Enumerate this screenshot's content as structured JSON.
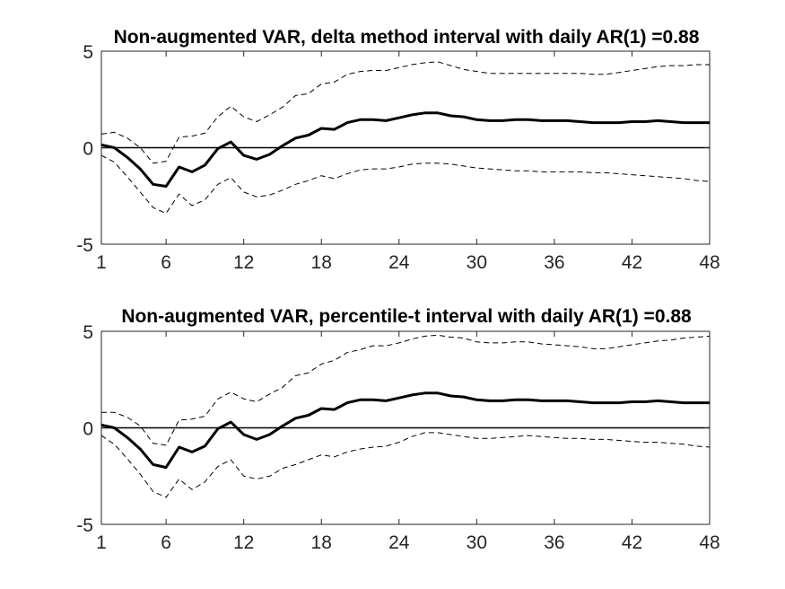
{
  "chart_data": [
    {
      "type": "line",
      "title": "Non-augmented VAR, delta method interval with daily AR(1) =0.88",
      "xlabel": "",
      "ylabel": "",
      "xlim": [
        1,
        48
      ],
      "ylim": [
        -5,
        5
      ],
      "xticks": [
        1,
        6,
        12,
        18,
        24,
        30,
        36,
        42,
        48
      ],
      "yticks": [
        -5,
        0,
        5
      ],
      "xtick_labels": [
        "1",
        "6",
        "12",
        "18",
        "24",
        "30",
        "36",
        "42",
        "48"
      ],
      "ytick_labels": [
        "-5",
        "0",
        "5"
      ],
      "grid": false,
      "reference_line": 0,
      "colors": {
        "line": "#000000"
      },
      "x": [
        1,
        2,
        3,
        4,
        5,
        6,
        7,
        8,
        9,
        10,
        11,
        12,
        13,
        14,
        15,
        16,
        17,
        18,
        19,
        20,
        21,
        22,
        23,
        24,
        25,
        26,
        27,
        28,
        29,
        30,
        31,
        32,
        33,
        34,
        35,
        36,
        37,
        38,
        39,
        40,
        41,
        42,
        43,
        44,
        45,
        46,
        47,
        48
      ],
      "series": [
        {
          "role": "estimate",
          "style": "solid-thick",
          "values": [
            0.15,
            0.0,
            -0.5,
            -1.1,
            -1.9,
            -2.0,
            -1.0,
            -1.25,
            -0.9,
            -0.05,
            0.3,
            -0.4,
            -0.6,
            -0.35,
            0.1,
            0.5,
            0.65,
            1.0,
            0.95,
            1.3,
            1.45,
            1.45,
            1.4,
            1.55,
            1.7,
            1.8,
            1.8,
            1.65,
            1.6,
            1.45,
            1.4,
            1.4,
            1.45,
            1.45,
            1.4,
            1.4,
            1.4,
            1.35,
            1.3,
            1.3,
            1.3,
            1.35,
            1.35,
            1.4,
            1.35,
            1.3,
            1.3,
            1.3
          ]
        },
        {
          "role": "upper",
          "style": "dashed",
          "values": [
            0.7,
            0.8,
            0.5,
            0.0,
            -0.8,
            -0.7,
            0.55,
            0.6,
            0.75,
            1.6,
            2.15,
            1.6,
            1.35,
            1.7,
            2.1,
            2.7,
            2.8,
            3.3,
            3.4,
            3.8,
            3.95,
            4.0,
            4.0,
            4.15,
            4.3,
            4.4,
            4.45,
            4.25,
            4.05,
            3.95,
            3.85,
            3.85,
            3.85,
            3.85,
            3.85,
            3.85,
            3.85,
            3.85,
            3.8,
            3.8,
            3.9,
            4.0,
            4.1,
            4.2,
            4.25,
            4.25,
            4.3,
            4.3
          ]
        },
        {
          "role": "lower",
          "style": "dashed",
          "values": [
            -0.4,
            -0.75,
            -1.5,
            -2.3,
            -3.1,
            -3.4,
            -2.4,
            -3.0,
            -2.7,
            -1.9,
            -1.55,
            -2.3,
            -2.55,
            -2.45,
            -2.2,
            -1.9,
            -1.7,
            -1.45,
            -1.6,
            -1.35,
            -1.15,
            -1.1,
            -1.1,
            -1.0,
            -0.85,
            -0.8,
            -0.8,
            -0.85,
            -0.95,
            -1.05,
            -1.1,
            -1.15,
            -1.2,
            -1.2,
            -1.25,
            -1.25,
            -1.25,
            -1.25,
            -1.3,
            -1.3,
            -1.35,
            -1.4,
            -1.45,
            -1.5,
            -1.55,
            -1.6,
            -1.7,
            -1.75
          ]
        }
      ]
    },
    {
      "type": "line",
      "title": "Non-augmented VAR, percentile-t interval with daily AR(1) =0.88",
      "xlabel": "",
      "ylabel": "",
      "xlim": [
        1,
        48
      ],
      "ylim": [
        -5,
        5
      ],
      "xticks": [
        1,
        6,
        12,
        18,
        24,
        30,
        36,
        42,
        48
      ],
      "yticks": [
        -5,
        0,
        5
      ],
      "xtick_labels": [
        "1",
        "6",
        "12",
        "18",
        "24",
        "30",
        "36",
        "42",
        "48"
      ],
      "ytick_labels": [
        "-5",
        "0",
        "5"
      ],
      "grid": false,
      "reference_line": 0,
      "colors": {
        "line": "#000000"
      },
      "x": [
        1,
        2,
        3,
        4,
        5,
        6,
        7,
        8,
        9,
        10,
        11,
        12,
        13,
        14,
        15,
        16,
        17,
        18,
        19,
        20,
        21,
        22,
        23,
        24,
        25,
        26,
        27,
        28,
        29,
        30,
        31,
        32,
        33,
        34,
        35,
        36,
        37,
        38,
        39,
        40,
        41,
        42,
        43,
        44,
        45,
        46,
        47,
        48
      ],
      "series": [
        {
          "role": "estimate",
          "style": "solid-thick",
          "values": [
            0.15,
            0.0,
            -0.5,
            -1.1,
            -1.9,
            -2.05,
            -1.0,
            -1.25,
            -0.95,
            -0.05,
            0.3,
            -0.35,
            -0.6,
            -0.35,
            0.1,
            0.5,
            0.65,
            1.0,
            0.95,
            1.3,
            1.45,
            1.45,
            1.4,
            1.55,
            1.7,
            1.8,
            1.8,
            1.65,
            1.6,
            1.45,
            1.4,
            1.4,
            1.45,
            1.45,
            1.4,
            1.4,
            1.4,
            1.35,
            1.3,
            1.3,
            1.3,
            1.35,
            1.35,
            1.4,
            1.35,
            1.3,
            1.3,
            1.3
          ]
        },
        {
          "role": "upper",
          "style": "dashed",
          "values": [
            0.8,
            0.8,
            0.55,
            0.1,
            -0.8,
            -0.9,
            0.4,
            0.45,
            0.6,
            1.5,
            1.85,
            1.5,
            1.35,
            1.75,
            2.1,
            2.7,
            2.85,
            3.3,
            3.5,
            3.9,
            4.05,
            4.25,
            4.25,
            4.4,
            4.6,
            4.75,
            4.8,
            4.7,
            4.65,
            4.45,
            4.4,
            4.4,
            4.45,
            4.45,
            4.35,
            4.3,
            4.25,
            4.2,
            4.1,
            4.1,
            4.2,
            4.3,
            4.4,
            4.5,
            4.55,
            4.65,
            4.7,
            4.75
          ]
        },
        {
          "role": "lower",
          "style": "dashed",
          "values": [
            -0.4,
            -0.85,
            -1.6,
            -2.4,
            -3.3,
            -3.6,
            -2.65,
            -3.2,
            -2.8,
            -2.0,
            -1.65,
            -2.5,
            -2.65,
            -2.5,
            -2.1,
            -1.9,
            -1.65,
            -1.4,
            -1.5,
            -1.25,
            -1.1,
            -1.0,
            -0.95,
            -0.75,
            -0.45,
            -0.25,
            -0.25,
            -0.35,
            -0.45,
            -0.55,
            -0.55,
            -0.5,
            -0.45,
            -0.4,
            -0.45,
            -0.5,
            -0.55,
            -0.55,
            -0.6,
            -0.6,
            -0.65,
            -0.7,
            -0.75,
            -0.75,
            -0.8,
            -0.85,
            -0.95,
            -1.0
          ]
        }
      ]
    }
  ]
}
